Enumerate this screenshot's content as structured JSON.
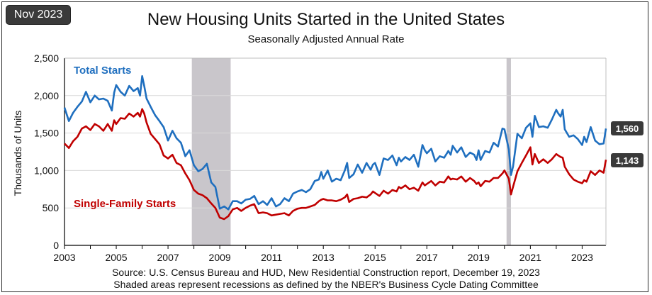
{
  "badge": {
    "label": "Nov 2023"
  },
  "header": {
    "title": "New Housing Units Started in the United States",
    "subtitle": "Seasonally Adjusted Annual Rate"
  },
  "footer": {
    "source": "Source:  U.S. Census Bureau and HUD, New Residential Construction report, December 19, 2023",
    "note": "Shaded areas represent recessions as defined by the NBER's Business Cycle Dating Committee"
  },
  "chart_data": {
    "type": "line",
    "title": "New Housing Units Started in the United States",
    "subtitle": "Seasonally Adjusted Annual Rate",
    "xlabel": "",
    "ylabel": "Thousands of Units",
    "xlim": [
      2003,
      2023.92
    ],
    "ylim": [
      0,
      2500
    ],
    "yticks": [
      0,
      500,
      1000,
      1500,
      2000,
      2500
    ],
    "ytick_labels": [
      "0",
      "500",
      "1,000",
      "1,500",
      "2,000",
      "2,500"
    ],
    "xticks": [
      2003,
      2005,
      2007,
      2009,
      2011,
      2013,
      2015,
      2017,
      2019,
      2021,
      2023
    ],
    "xtick_labels": [
      "2003",
      "2005",
      "2007",
      "2009",
      "2011",
      "2013",
      "2015",
      "2017",
      "2019",
      "2021",
      "2023"
    ],
    "grid": true,
    "recessions": [
      [
        2007.92,
        2009.42
      ],
      [
        2020.08,
        2020.25
      ]
    ],
    "series": [
      {
        "name": "Total Starts",
        "color": "#1f6fbf",
        "last_label": "1,560",
        "points": [
          [
            2003.0,
            1840
          ],
          [
            2003.17,
            1660
          ],
          [
            2003.33,
            1770
          ],
          [
            2003.5,
            1850
          ],
          [
            2003.67,
            1920
          ],
          [
            2003.83,
            2050
          ],
          [
            2004.0,
            1910
          ],
          [
            2004.17,
            2000
          ],
          [
            2004.33,
            1950
          ],
          [
            2004.5,
            1960
          ],
          [
            2004.67,
            1930
          ],
          [
            2004.83,
            1800
          ],
          [
            2004.92,
            2040
          ],
          [
            2005.0,
            2140
          ],
          [
            2005.17,
            2050
          ],
          [
            2005.33,
            2000
          ],
          [
            2005.5,
            2130
          ],
          [
            2005.67,
            2060
          ],
          [
            2005.83,
            2100
          ],
          [
            2005.92,
            2000
          ],
          [
            2006.0,
            2260
          ],
          [
            2006.08,
            2130
          ],
          [
            2006.17,
            1960
          ],
          [
            2006.33,
            1850
          ],
          [
            2006.5,
            1740
          ],
          [
            2006.67,
            1660
          ],
          [
            2006.83,
            1580
          ],
          [
            2007.0,
            1400
          ],
          [
            2007.17,
            1530
          ],
          [
            2007.33,
            1430
          ],
          [
            2007.5,
            1370
          ],
          [
            2007.67,
            1190
          ],
          [
            2007.83,
            1270
          ],
          [
            2008.0,
            1070
          ],
          [
            2008.17,
            990
          ],
          [
            2008.33,
            1020
          ],
          [
            2008.5,
            1090
          ],
          [
            2008.67,
            840
          ],
          [
            2008.83,
            780
          ],
          [
            2009.0,
            490
          ],
          [
            2009.17,
            520
          ],
          [
            2009.33,
            480
          ],
          [
            2009.5,
            590
          ],
          [
            2009.67,
            590
          ],
          [
            2009.83,
            560
          ],
          [
            2010.0,
            610
          ],
          [
            2010.17,
            620
          ],
          [
            2010.33,
            660
          ],
          [
            2010.5,
            550
          ],
          [
            2010.67,
            590
          ],
          [
            2010.83,
            540
          ],
          [
            2011.0,
            630
          ],
          [
            2011.17,
            520
          ],
          [
            2011.33,
            550
          ],
          [
            2011.5,
            630
          ],
          [
            2011.67,
            590
          ],
          [
            2011.83,
            690
          ],
          [
            2012.0,
            720
          ],
          [
            2012.17,
            740
          ],
          [
            2012.33,
            710
          ],
          [
            2012.5,
            750
          ],
          [
            2012.67,
            860
          ],
          [
            2012.83,
            880
          ],
          [
            2012.92,
            980
          ],
          [
            2013.0,
            890
          ],
          [
            2013.17,
            1000
          ],
          [
            2013.33,
            850
          ],
          [
            2013.5,
            890
          ],
          [
            2013.67,
            870
          ],
          [
            2013.83,
            1000
          ],
          [
            2013.92,
            1100
          ],
          [
            2014.0,
            900
          ],
          [
            2014.17,
            950
          ],
          [
            2014.33,
            1080
          ],
          [
            2014.5,
            970
          ],
          [
            2014.67,
            1100
          ],
          [
            2014.83,
            1010
          ],
          [
            2014.92,
            1080
          ],
          [
            2015.0,
            1100
          ],
          [
            2015.17,
            940
          ],
          [
            2015.33,
            1160
          ],
          [
            2015.5,
            1140
          ],
          [
            2015.67,
            1200
          ],
          [
            2015.83,
            1070
          ],
          [
            2015.92,
            1170
          ],
          [
            2016.0,
            1120
          ],
          [
            2016.17,
            1180
          ],
          [
            2016.33,
            1140
          ],
          [
            2016.5,
            1210
          ],
          [
            2016.67,
            1050
          ],
          [
            2016.83,
            1340
          ],
          [
            2016.92,
            1270
          ],
          [
            2017.0,
            1230
          ],
          [
            2017.17,
            1290
          ],
          [
            2017.33,
            1120
          ],
          [
            2017.5,
            1190
          ],
          [
            2017.67,
            1170
          ],
          [
            2017.83,
            1260
          ],
          [
            2017.92,
            1210
          ],
          [
            2018.0,
            1330
          ],
          [
            2018.17,
            1240
          ],
          [
            2018.33,
            1310
          ],
          [
            2018.5,
            1180
          ],
          [
            2018.67,
            1240
          ],
          [
            2018.83,
            1210
          ],
          [
            2018.92,
            1140
          ],
          [
            2019.0,
            1270
          ],
          [
            2019.08,
            1140
          ],
          [
            2019.25,
            1260
          ],
          [
            2019.42,
            1240
          ],
          [
            2019.58,
            1370
          ],
          [
            2019.75,
            1320
          ],
          [
            2019.92,
            1560
          ],
          [
            2020.0,
            1550
          ],
          [
            2020.17,
            1280
          ],
          [
            2020.25,
            940
          ],
          [
            2020.33,
            1050
          ],
          [
            2020.5,
            1490
          ],
          [
            2020.67,
            1430
          ],
          [
            2020.83,
            1570
          ],
          [
            2021.0,
            1630
          ],
          [
            2021.08,
            1450
          ],
          [
            2021.17,
            1730
          ],
          [
            2021.33,
            1580
          ],
          [
            2021.5,
            1590
          ],
          [
            2021.67,
            1570
          ],
          [
            2021.83,
            1680
          ],
          [
            2022.0,
            1810
          ],
          [
            2022.08,
            1760
          ],
          [
            2022.17,
            1720
          ],
          [
            2022.25,
            1810
          ],
          [
            2022.33,
            1550
          ],
          [
            2022.5,
            1450
          ],
          [
            2022.67,
            1470
          ],
          [
            2022.83,
            1420
          ],
          [
            2023.0,
            1340
          ],
          [
            2023.08,
            1450
          ],
          [
            2023.17,
            1380
          ],
          [
            2023.33,
            1580
          ],
          [
            2023.5,
            1400
          ],
          [
            2023.67,
            1350
          ],
          [
            2023.83,
            1360
          ],
          [
            2023.92,
            1560
          ]
        ]
      },
      {
        "name": "Single-Family Starts",
        "color": "#c00000",
        "last_label": "1,143",
        "points": [
          [
            2003.0,
            1360
          ],
          [
            2003.17,
            1300
          ],
          [
            2003.33,
            1390
          ],
          [
            2003.5,
            1450
          ],
          [
            2003.67,
            1560
          ],
          [
            2003.83,
            1590
          ],
          [
            2004.0,
            1540
          ],
          [
            2004.17,
            1620
          ],
          [
            2004.33,
            1590
          ],
          [
            2004.5,
            1530
          ],
          [
            2004.67,
            1620
          ],
          [
            2004.83,
            1530
          ],
          [
            2004.92,
            1670
          ],
          [
            2005.0,
            1620
          ],
          [
            2005.17,
            1700
          ],
          [
            2005.33,
            1690
          ],
          [
            2005.5,
            1760
          ],
          [
            2005.67,
            1720
          ],
          [
            2005.83,
            1770
          ],
          [
            2005.92,
            1720
          ],
          [
            2006.0,
            1820
          ],
          [
            2006.08,
            1760
          ],
          [
            2006.17,
            1640
          ],
          [
            2006.33,
            1490
          ],
          [
            2006.5,
            1420
          ],
          [
            2006.67,
            1350
          ],
          [
            2006.83,
            1200
          ],
          [
            2007.0,
            1160
          ],
          [
            2007.17,
            1210
          ],
          [
            2007.33,
            1100
          ],
          [
            2007.5,
            1070
          ],
          [
            2007.67,
            960
          ],
          [
            2007.83,
            870
          ],
          [
            2008.0,
            740
          ],
          [
            2008.17,
            690
          ],
          [
            2008.33,
            670
          ],
          [
            2008.5,
            630
          ],
          [
            2008.67,
            560
          ],
          [
            2008.83,
            500
          ],
          [
            2009.0,
            370
          ],
          [
            2009.17,
            350
          ],
          [
            2009.33,
            390
          ],
          [
            2009.5,
            480
          ],
          [
            2009.67,
            500
          ],
          [
            2009.83,
            460
          ],
          [
            2010.0,
            500
          ],
          [
            2010.17,
            530
          ],
          [
            2010.33,
            550
          ],
          [
            2010.5,
            430
          ],
          [
            2010.67,
            440
          ],
          [
            2010.83,
            430
          ],
          [
            2011.0,
            400
          ],
          [
            2011.17,
            410
          ],
          [
            2011.33,
            420
          ],
          [
            2011.5,
            430
          ],
          [
            2011.67,
            400
          ],
          [
            2011.83,
            460
          ],
          [
            2012.0,
            490
          ],
          [
            2012.17,
            500
          ],
          [
            2012.33,
            500
          ],
          [
            2012.5,
            520
          ],
          [
            2012.67,
            540
          ],
          [
            2012.83,
            590
          ],
          [
            2012.92,
            610
          ],
          [
            2013.0,
            620
          ],
          [
            2013.17,
            600
          ],
          [
            2013.33,
            600
          ],
          [
            2013.5,
            590
          ],
          [
            2013.67,
            610
          ],
          [
            2013.83,
            640
          ],
          [
            2013.92,
            680
          ],
          [
            2014.0,
            580
          ],
          [
            2014.17,
            620
          ],
          [
            2014.33,
            630
          ],
          [
            2014.5,
            650
          ],
          [
            2014.67,
            640
          ],
          [
            2014.83,
            680
          ],
          [
            2014.92,
            720
          ],
          [
            2015.0,
            700
          ],
          [
            2015.17,
            660
          ],
          [
            2015.33,
            730
          ],
          [
            2015.5,
            690
          ],
          [
            2015.67,
            740
          ],
          [
            2015.83,
            720
          ],
          [
            2015.92,
            780
          ],
          [
            2016.0,
            760
          ],
          [
            2016.17,
            800
          ],
          [
            2016.33,
            750
          ],
          [
            2016.5,
            770
          ],
          [
            2016.67,
            730
          ],
          [
            2016.83,
            840
          ],
          [
            2016.92,
            800
          ],
          [
            2017.0,
            820
          ],
          [
            2017.17,
            860
          ],
          [
            2017.33,
            800
          ],
          [
            2017.5,
            850
          ],
          [
            2017.67,
            840
          ],
          [
            2017.83,
            920
          ],
          [
            2017.92,
            880
          ],
          [
            2018.0,
            890
          ],
          [
            2018.17,
            880
          ],
          [
            2018.33,
            920
          ],
          [
            2018.5,
            850
          ],
          [
            2018.67,
            900
          ],
          [
            2018.83,
            860
          ],
          [
            2018.92,
            820
          ],
          [
            2019.0,
            840
          ],
          [
            2019.08,
            790
          ],
          [
            2019.25,
            860
          ],
          [
            2019.42,
            850
          ],
          [
            2019.58,
            900
          ],
          [
            2019.75,
            900
          ],
          [
            2019.92,
            960
          ],
          [
            2020.0,
            1000
          ],
          [
            2020.17,
            890
          ],
          [
            2020.25,
            680
          ],
          [
            2020.33,
            780
          ],
          [
            2020.5,
            990
          ],
          [
            2020.67,
            1100
          ],
          [
            2020.83,
            1200
          ],
          [
            2021.0,
            1310
          ],
          [
            2021.08,
            1080
          ],
          [
            2021.17,
            1220
          ],
          [
            2021.33,
            1100
          ],
          [
            2021.5,
            1150
          ],
          [
            2021.67,
            1100
          ],
          [
            2021.83,
            1150
          ],
          [
            2022.0,
            1220
          ],
          [
            2022.08,
            1200
          ],
          [
            2022.17,
            1180
          ],
          [
            2022.25,
            1170
          ],
          [
            2022.33,
            1050
          ],
          [
            2022.5,
            950
          ],
          [
            2022.67,
            880
          ],
          [
            2022.83,
            850
          ],
          [
            2023.0,
            830
          ],
          [
            2023.08,
            870
          ],
          [
            2023.17,
            850
          ],
          [
            2023.33,
            990
          ],
          [
            2023.5,
            940
          ],
          [
            2023.67,
            1000
          ],
          [
            2023.83,
            970
          ],
          [
            2023.92,
            1143
          ]
        ]
      }
    ]
  }
}
